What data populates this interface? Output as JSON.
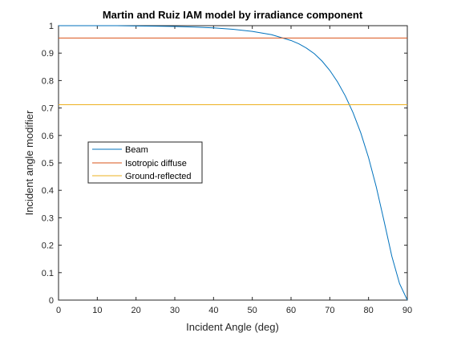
{
  "chart_data": {
    "type": "line",
    "title": "Martin and Ruiz IAM model by irradiance component",
    "xlabel": "Incident Angle (deg)",
    "ylabel": "Incident angle modifier",
    "xlim": [
      0,
      90
    ],
    "ylim": [
      0,
      1
    ],
    "xticks": [
      0,
      10,
      20,
      30,
      40,
      50,
      60,
      70,
      80,
      90
    ],
    "yticks": [
      0,
      0.1,
      0.2,
      0.3,
      0.4,
      0.5,
      0.6,
      0.7,
      0.8,
      0.9,
      1
    ],
    "x_tick_labels": [
      "0",
      "10",
      "20",
      "30",
      "40",
      "50",
      "60",
      "70",
      "80",
      "90"
    ],
    "y_tick_labels": [
      "0",
      "0.1",
      "0.2",
      "0.3",
      "0.4",
      "0.5",
      "0.6",
      "0.7",
      "0.8",
      "0.9",
      "1"
    ],
    "grid": false,
    "legend_position": "middle-left",
    "series": [
      {
        "name": "Beam",
        "color": "#0072BD",
        "x": [
          0,
          5,
          10,
          15,
          20,
          25,
          30,
          35,
          40,
          45,
          50,
          55,
          60,
          62,
          64,
          66,
          68,
          70,
          72,
          74,
          76,
          78,
          80,
          82,
          84,
          86,
          88,
          90
        ],
        "y": [
          1.0,
          1.0,
          1.0,
          1.0,
          0.999,
          0.998,
          0.997,
          0.995,
          0.992,
          0.987,
          0.979,
          0.967,
          0.946,
          0.934,
          0.918,
          0.898,
          0.871,
          0.837,
          0.795,
          0.744,
          0.683,
          0.609,
          0.519,
          0.412,
          0.288,
          0.16,
          0.06,
          0.0
        ]
      },
      {
        "name": "Isotropic diffuse",
        "color": "#D95319",
        "x": [
          0,
          90
        ],
        "y": [
          0.955,
          0.955
        ]
      },
      {
        "name": "Ground-reflected",
        "color": "#EDB120",
        "x": [
          0,
          90
        ],
        "y": [
          0.712,
          0.712
        ]
      }
    ]
  }
}
